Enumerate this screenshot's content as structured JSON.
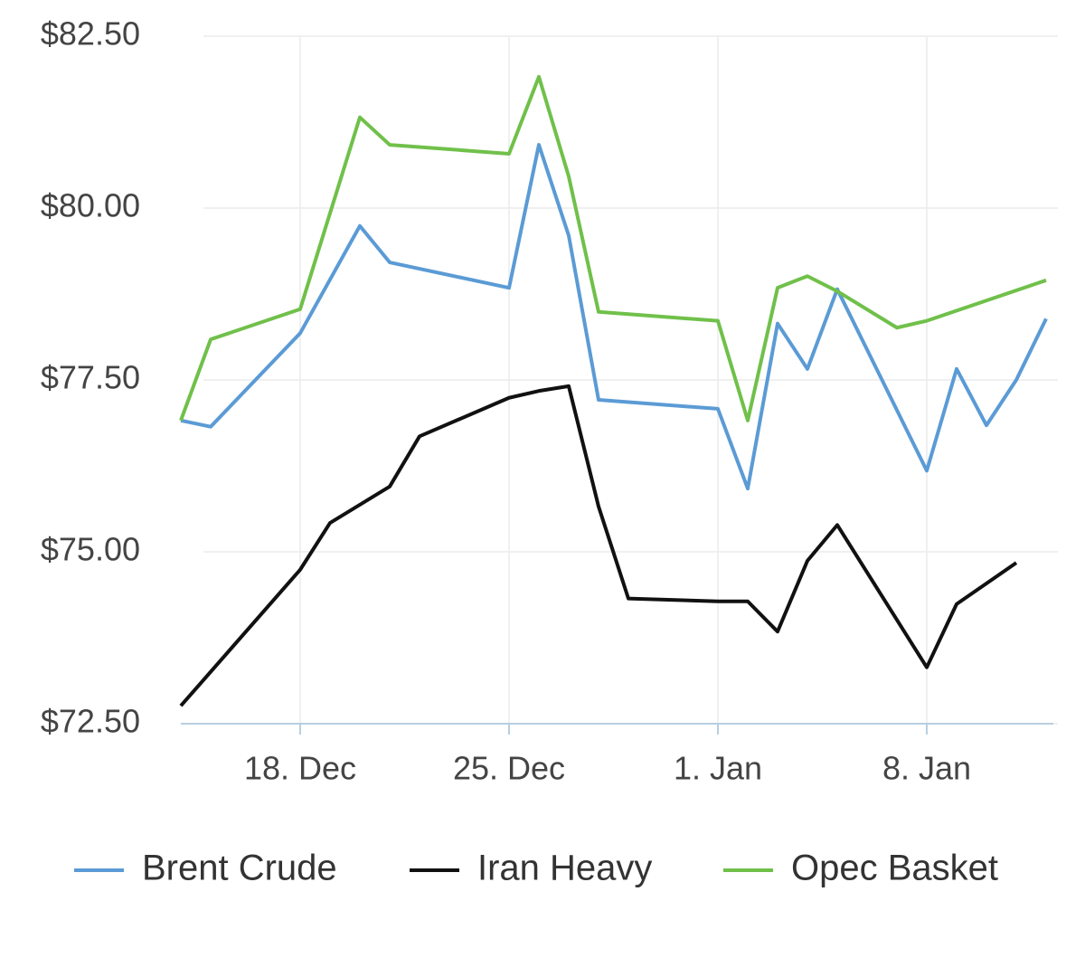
{
  "chart_data": {
    "type": "line",
    "xlim": [
      "14. Dec",
      "12. Jan"
    ],
    "xticks": [
      "18. Dec",
      "25. Dec",
      "1. Jan",
      "8. Jan"
    ],
    "ylim": [
      72.5,
      82.5
    ],
    "yticks": [
      {
        "value": 72.5,
        "label": "$72.50"
      },
      {
        "value": 75,
        "label": "$75.00"
      },
      {
        "value": 77.5,
        "label": "$77.50"
      },
      {
        "value": 80,
        "label": "$80.00"
      },
      {
        "value": 82.5,
        "label": "$82.50"
      }
    ],
    "grid": true,
    "legend": "bottom",
    "series": [
      {
        "name": "Brent Crude",
        "color": "#5b9bd5",
        "x": [
          "14. Dec",
          "15. Dec",
          "18. Dec",
          "20. Dec",
          "21. Dec",
          "25. Dec",
          "26. Dec",
          "27. Dec",
          "28. Dec",
          "1. Jan",
          "2. Jan",
          "3. Jan",
          "4. Jan",
          "5. Jan",
          "8. Jan",
          "9. Jan",
          "10. Jan",
          "11. Jan",
          "12. Jan"
        ],
        "values": [
          76.91,
          76.82,
          78.18,
          79.74,
          79.21,
          78.84,
          80.92,
          79.6,
          77.21,
          77.08,
          75.92,
          78.32,
          77.66,
          78.82,
          76.18,
          77.66,
          76.84,
          77.5,
          78.39
        ]
      },
      {
        "name": "Iran Heavy",
        "color": "#111111",
        "x": [
          "14. Dec",
          "18. Dec",
          "19. Dec",
          "21. Dec",
          "22. Dec",
          "25. Dec",
          "26. Dec",
          "27. Dec",
          "28. Dec",
          "29. Dec",
          "1. Jan",
          "2. Jan",
          "3. Jan",
          "4. Jan",
          "5. Jan",
          "8. Jan",
          "9. Jan",
          "11. Jan"
        ],
        "values": [
          72.76,
          74.74,
          75.42,
          75.95,
          76.68,
          77.24,
          77.34,
          77.41,
          75.66,
          74.32,
          74.28,
          74.28,
          73.84,
          74.87,
          75.39,
          73.32,
          74.24,
          74.84
        ]
      },
      {
        "name": "Opec Basket",
        "color": "#70c04a",
        "x": [
          "14. Dec",
          "15. Dec",
          "18. Dec",
          "20. Dec",
          "21. Dec",
          "25. Dec",
          "26. Dec",
          "27. Dec",
          "28. Dec",
          "1. Jan",
          "2. Jan",
          "3. Jan",
          "4. Jan",
          "5. Jan",
          "7. Jan",
          "8. Jan",
          "12. Jan"
        ],
        "values": [
          76.91,
          78.09,
          78.53,
          81.32,
          80.92,
          80.79,
          81.91,
          80.46,
          78.49,
          78.36,
          76.91,
          78.84,
          79.01,
          78.79,
          78.26,
          78.36,
          78.95
        ]
      }
    ]
  }
}
